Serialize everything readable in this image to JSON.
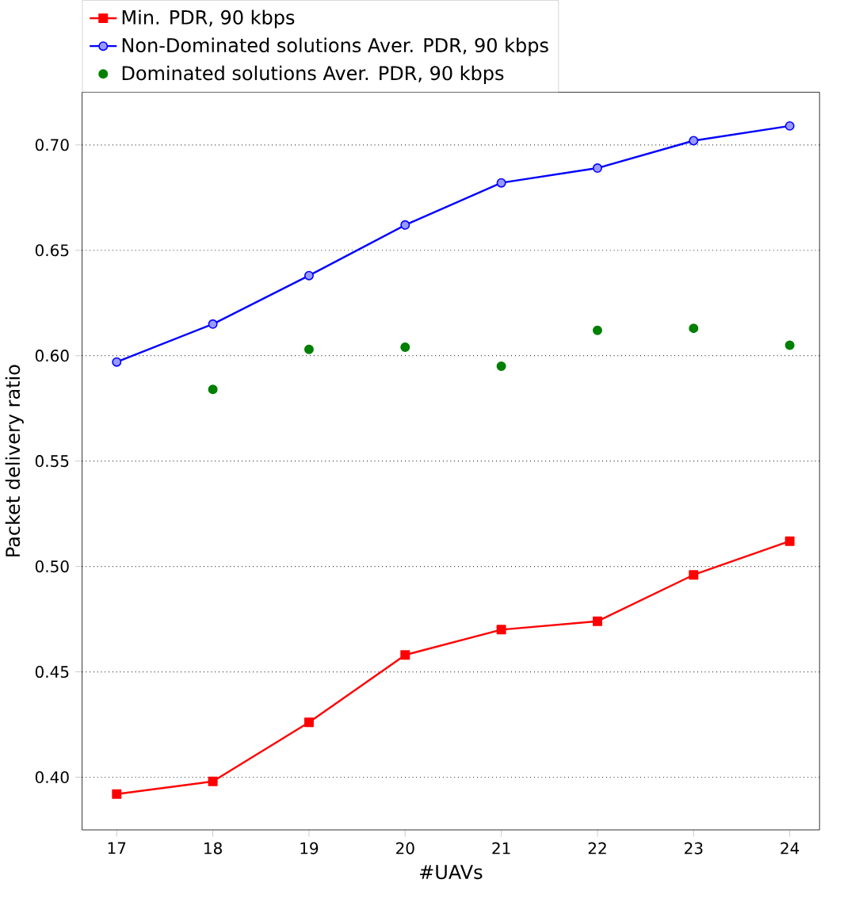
{
  "chart_data": {
    "type": "line",
    "xlabel": "#UAVs",
    "ylabel": "Packet delivery ratio",
    "x": [
      17,
      18,
      19,
      20,
      21,
      22,
      23,
      24
    ],
    "series": [
      {
        "name": "Min. PDR, 90 kbps",
        "color": "#ff0000",
        "marker": "square",
        "values": [
          0.392,
          0.398,
          0.426,
          0.458,
          0.47,
          0.474,
          0.496,
          0.512
        ]
      },
      {
        "name": "Non-Dominated solutions Aver. PDR, 90 kbps",
        "color": "#0000ff",
        "marker": "circle",
        "values": [
          0.597,
          0.615,
          0.638,
          0.662,
          0.682,
          0.689,
          0.702,
          0.709
        ]
      },
      {
        "name": "Dominated solutions Aver. PDR, 90 kbps",
        "type": "scatter",
        "color": "#008000",
        "marker": "circle",
        "x": [
          18,
          19,
          20,
          21,
          22,
          23,
          24
        ],
        "values": [
          0.584,
          0.603,
          0.604,
          0.595,
          0.612,
          0.613,
          0.605
        ]
      }
    ],
    "xlim": [
      16.64,
      24.31
    ],
    "ylim": [
      0.375,
      0.725
    ],
    "xticks": [
      17,
      18,
      19,
      20,
      21,
      22,
      23,
      24
    ],
    "yticks": [
      {
        "value": 0.4,
        "label": "0.40"
      },
      {
        "value": 0.45,
        "label": "0.45"
      },
      {
        "value": 0.5,
        "label": "0.50"
      },
      {
        "value": 0.55,
        "label": "0.55"
      },
      {
        "value": 0.6,
        "label": "0.60"
      },
      {
        "value": 0.65,
        "label": "0.65"
      },
      {
        "value": 0.7,
        "label": "0.70"
      }
    ],
    "grid": "y",
    "legend": "top"
  }
}
